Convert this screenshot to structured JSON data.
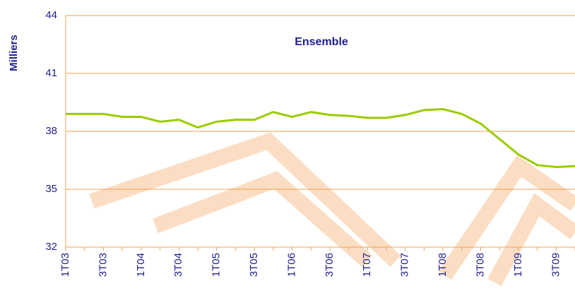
{
  "chart_data": {
    "type": "line",
    "title": "Ensemble",
    "y_label": "Milliers",
    "categories": [
      "1T03",
      null,
      "3T03",
      null,
      "1T04",
      null,
      "3T04",
      null,
      "1T05",
      null,
      "3T05",
      null,
      "1T06",
      null,
      "3T06",
      null,
      "1T07",
      null,
      "3T07",
      null,
      "1T08",
      null,
      "3T08",
      null,
      "1T09",
      null,
      "3T09",
      null
    ],
    "series": [
      {
        "name": "Ensemble",
        "color": "#99cc00",
        "values": [
          38.9,
          38.9,
          38.9,
          38.75,
          38.75,
          38.5,
          38.6,
          38.2,
          38.5,
          38.6,
          38.6,
          39.0,
          38.75,
          39.0,
          38.85,
          38.8,
          38.7,
          38.7,
          38.85,
          39.1,
          39.15,
          38.9,
          38.4,
          37.6,
          36.8,
          36.25,
          36.15,
          36.2
        ]
      }
    ],
    "ylim": [
      32,
      44
    ],
    "yticks": [
      32,
      35,
      38,
      41,
      44
    ],
    "grid": true
  }
}
